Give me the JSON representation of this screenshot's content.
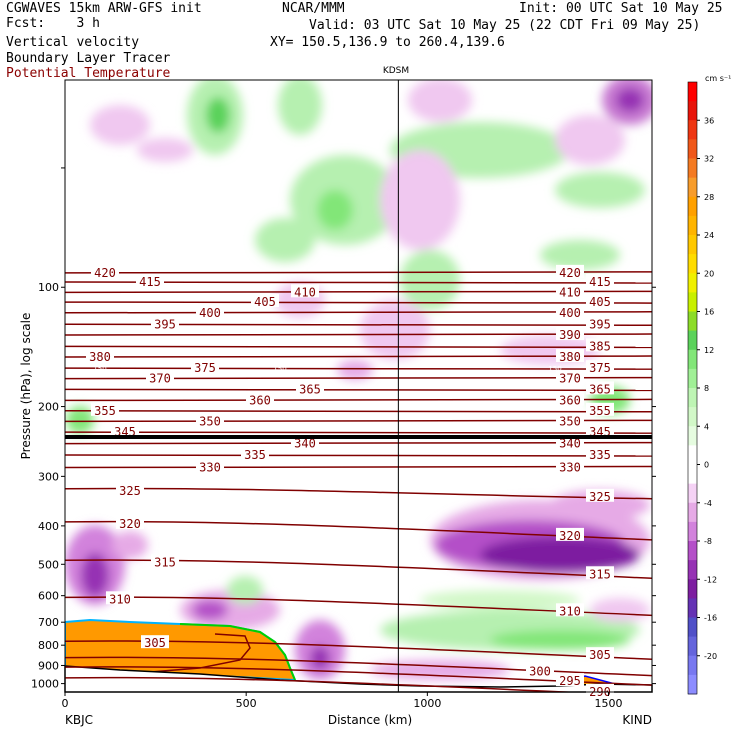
{
  "header": {
    "model": "CGWAVES 15km ARW-GFS init",
    "forecast": "Fcst:    3 h",
    "field_main": "Vertical velocity",
    "field_tracer": "Boundary Layer Tracer",
    "field_theta": "Potential Temperature",
    "center": "NCAR/MMM",
    "init": "Init: 00 UTC Sat 10 May 25",
    "valid": "Valid: 03 UTC Sat 10 May 25 (22 CDT Fri 09 May 25)",
    "xy": "XY= 150.5,136.9 to 260.4,139.6"
  },
  "colors": {
    "theta": "#800000",
    "theta_label": "#800000",
    "tracer_fill": "#ff9900",
    "accent_red": "#8b0000"
  },
  "chart_data": {
    "type": "heatmap",
    "xlabel": "Distance (km)",
    "ylabel": "Pressure (hPa), log scale",
    "xlim": [
      0,
      1620
    ],
    "ylim": [
      1050,
      30
    ],
    "x_ticks": [
      0,
      500,
      1000,
      1500
    ],
    "y_ticks": [
      100,
      200,
      300,
      400,
      500,
      600,
      700,
      800,
      900,
      1000
    ],
    "left_station": "KBJC",
    "right_station": "KIND",
    "mid_station": "KDSM",
    "mid_station_x": 920,
    "colorbar": {
      "unit": "cm s⁻¹",
      "tick_labels": [
        "36",
        "32",
        "28",
        "24",
        "20",
        "16",
        "12",
        "8",
        "4",
        "0",
        "-4",
        "-8",
        "-12",
        "-16",
        "-20"
      ],
      "levels": [
        40,
        38,
        36,
        34,
        32,
        30,
        28,
        26,
        24,
        22,
        20,
        18,
        16,
        14,
        12,
        10,
        8,
        6,
        4,
        2,
        0,
        -2,
        -4,
        -6,
        -8,
        -10,
        -12,
        -14,
        -16,
        -18,
        -20,
        -22
      ],
      "colors": [
        "#ff0000",
        "#e8140a",
        "#ee3612",
        "#f0581a",
        "#f47a22",
        "#f79c2b",
        "#ffa000",
        "#ffb400",
        "#ffc800",
        "#ffdc00",
        "#f0f000",
        "#c8f000",
        "#8cdc28",
        "#5ad25a",
        "#82e678",
        "#a0f096",
        "#bef5b4",
        "#d2f8c8",
        "#e6fce0",
        "#ffffff",
        "#ffffff",
        "#f5d2f5",
        "#e6aae6",
        "#d282dc",
        "#b450c8",
        "#9632b4",
        "#7d1ea0",
        "#6432b4",
        "#5050c8",
        "#6464dc",
        "#7878f0",
        "#8c8cff"
      ]
    },
    "theta_contours": [
      {
        "label": "420",
        "p": 92
      },
      {
        "label": "415",
        "p": 97
      },
      {
        "label": "410",
        "p": 103
      },
      {
        "label": "405",
        "p": 109
      },
      {
        "label": "400",
        "p": 116
      },
      {
        "label": "395",
        "p": 124
      },
      {
        "label": "390",
        "p": 132
      },
      {
        "label": "385",
        "p": 141
      },
      {
        "label": "380",
        "p": 150
      },
      {
        "label": "375",
        "p": 160
      },
      {
        "label": "370",
        "p": 170
      },
      {
        "label": "365",
        "p": 181
      },
      {
        "label": "360",
        "p": 193
      },
      {
        "label": "355",
        "p": 205
      },
      {
        "label": "350",
        "p": 218
      },
      {
        "label": "345",
        "p": 232
      },
      {
        "label": "340",
        "p": 248
      },
      {
        "label": "335",
        "p": 265
      },
      {
        "label": "330",
        "p": 285
      },
      {
        "label": "325",
        "p": 330
      },
      {
        "label": "320",
        "p": 400
      },
      {
        "label": "315",
        "p": 500
      },
      {
        "label": "310",
        "p": 620
      },
      {
        "label": "305",
        "p": 800
      },
      {
        "label": "300",
        "p": 880
      },
      {
        "label": "295",
        "p": 930
      },
      {
        "label": "290",
        "p": 990
      }
    ],
    "theta_labels_left": [
      "420",
      "415",
      "395",
      "400",
      "405",
      "410",
      "380",
      "370",
      "375",
      "355",
      "345",
      "350",
      "360",
      "365",
      "330",
      "335",
      "340",
      "325",
      "320",
      "315",
      "310",
      "305"
    ],
    "theta_labels_right": [
      "420",
      "415",
      "410",
      "405",
      "400",
      "395",
      "390",
      "385",
      "380",
      "375",
      "370",
      "365",
      "360",
      "355",
      "350",
      "345",
      "340",
      "335",
      "330",
      "325",
      "320",
      "315",
      "310",
      "305",
      "300",
      "295",
      "290"
    ],
    "tropopause_labels": [
      "150",
      "150",
      "150"
    ]
  }
}
